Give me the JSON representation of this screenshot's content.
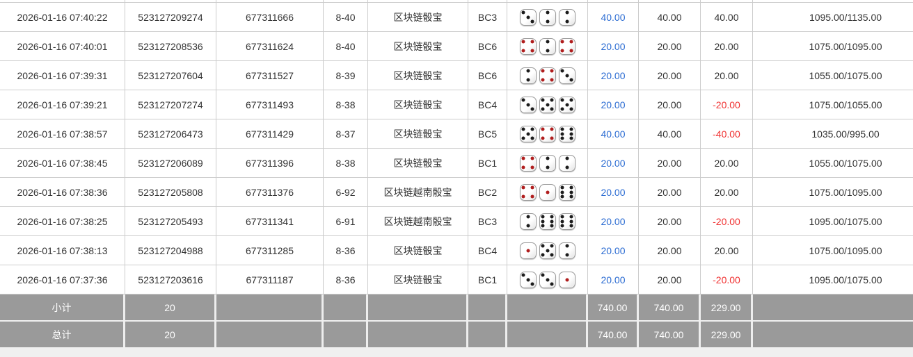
{
  "table": {
    "rows": [
      {
        "time": "2026-01-16 07:40:22",
        "bet_no": "523127209274",
        "draw_no": "677311666",
        "period": "8-40",
        "game": "区块链骰宝",
        "play": "BC3",
        "dice": [
          3,
          2,
          2
        ],
        "bet": "40.00",
        "valid": "40.00",
        "win": "40.00",
        "balance": "1095.00/1135.00"
      },
      {
        "time": "2026-01-16 07:40:01",
        "bet_no": "523127208536",
        "draw_no": "677311624",
        "period": "8-40",
        "game": "区块链骰宝",
        "play": "BC6",
        "dice": [
          4,
          2,
          4
        ],
        "bet": "20.00",
        "valid": "20.00",
        "win": "20.00",
        "balance": "1075.00/1095.00"
      },
      {
        "time": "2026-01-16 07:39:31",
        "bet_no": "523127207604",
        "draw_no": "677311527",
        "period": "8-39",
        "game": "区块链骰宝",
        "play": "BC6",
        "dice": [
          2,
          4,
          3
        ],
        "bet": "20.00",
        "valid": "20.00",
        "win": "20.00",
        "balance": "1055.00/1075.00"
      },
      {
        "time": "2026-01-16 07:39:21",
        "bet_no": "523127207274",
        "draw_no": "677311493",
        "period": "8-38",
        "game": "区块链骰宝",
        "play": "BC4",
        "dice": [
          3,
          5,
          5
        ],
        "bet": "20.00",
        "valid": "20.00",
        "win": "-20.00",
        "balance": "1075.00/1055.00"
      },
      {
        "time": "2026-01-16 07:38:57",
        "bet_no": "523127206473",
        "draw_no": "677311429",
        "period": "8-37",
        "game": "区块链骰宝",
        "play": "BC5",
        "dice": [
          5,
          4,
          6
        ],
        "bet": "40.00",
        "valid": "40.00",
        "win": "-40.00",
        "balance": "1035.00/995.00"
      },
      {
        "time": "2026-01-16 07:38:45",
        "bet_no": "523127206089",
        "draw_no": "677311396",
        "period": "8-38",
        "game": "区块链骰宝",
        "play": "BC1",
        "dice": [
          4,
          2,
          2
        ],
        "bet": "20.00",
        "valid": "20.00",
        "win": "20.00",
        "balance": "1055.00/1075.00"
      },
      {
        "time": "2026-01-16 07:38:36",
        "bet_no": "523127205808",
        "draw_no": "677311376",
        "period": "6-92",
        "game": "区块链越南骰宝",
        "play": "BC2",
        "dice": [
          4,
          1,
          6
        ],
        "bet": "20.00",
        "valid": "20.00",
        "win": "20.00",
        "balance": "1075.00/1095.00"
      },
      {
        "time": "2026-01-16 07:38:25",
        "bet_no": "523127205493",
        "draw_no": "677311341",
        "period": "6-91",
        "game": "区块链越南骰宝",
        "play": "BC3",
        "dice": [
          2,
          6,
          6
        ],
        "bet": "20.00",
        "valid": "20.00",
        "win": "-20.00",
        "balance": "1095.00/1075.00"
      },
      {
        "time": "2026-01-16 07:38:13",
        "bet_no": "523127204988",
        "draw_no": "677311285",
        "period": "8-36",
        "game": "区块链骰宝",
        "play": "BC4",
        "dice": [
          1,
          5,
          2
        ],
        "bet": "20.00",
        "valid": "20.00",
        "win": "20.00",
        "balance": "1075.00/1095.00"
      },
      {
        "time": "2026-01-16 07:37:36",
        "bet_no": "523127203616",
        "draw_no": "677311187",
        "period": "8-36",
        "game": "区块链骰宝",
        "play": "BC1",
        "dice": [
          3,
          3,
          1
        ],
        "bet": "20.00",
        "valid": "20.00",
        "win": "-20.00",
        "balance": "1095.00/1075.00"
      }
    ],
    "subtotal": {
      "label": "小计",
      "count": "20",
      "bet": "740.00",
      "valid": "740.00",
      "win": "229.00"
    },
    "total": {
      "label": "总计",
      "count": "20",
      "bet": "740.00",
      "valid": "740.00",
      "win": "229.00"
    }
  },
  "colors": {
    "bet_link_blue": "#2a6bd2",
    "loss_red": "#f03030",
    "red_pip": "#b01d1d",
    "footer_gray": "#9a9a9a",
    "border_gray": "#cccccc"
  }
}
